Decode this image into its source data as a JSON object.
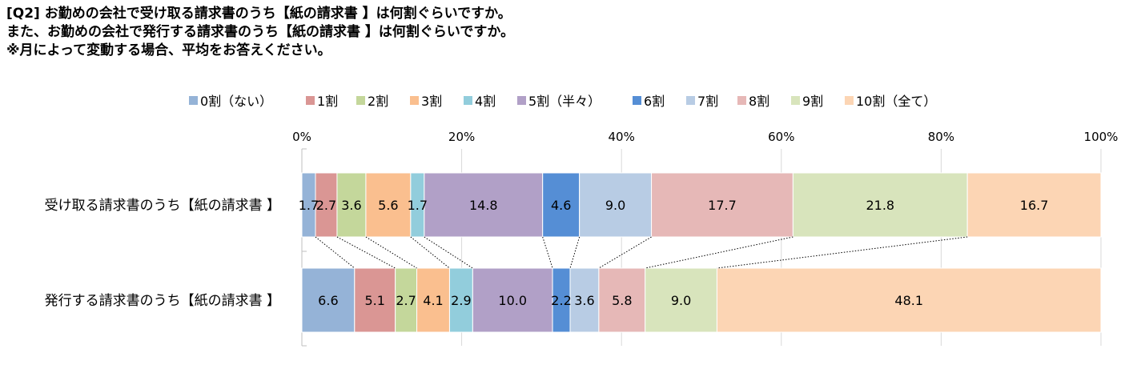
{
  "title_lines": [
    "[Q2] お勤めの会社で受け取る請求書のうち【紙の請求書 】は何割ぐらいですか。",
    "また、お勤めの会社で発行する請求書のうち【紙の請求書 】は何割ぐらいですか。",
    "※月によって変動する場合、平均をお答えください。"
  ],
  "chart_data": {
    "type": "bar",
    "stacked": true,
    "orientation": "horizontal",
    "percent_stacked": true,
    "categories": [
      "受け取る請求書のうち【紙の請求書 】",
      "発行する請求書のうち【紙の請求書 】"
    ],
    "x_ticks": [
      "0%",
      "20%",
      "40%",
      "60%",
      "80%",
      "100%"
    ],
    "xlim": [
      0,
      100
    ],
    "legend_position": "top",
    "grid": true,
    "series_lines": true,
    "series": [
      {
        "name": "0割（ない）",
        "color": "#95B3D7",
        "values": [
          1.7,
          6.6
        ]
      },
      {
        "name": "1割",
        "color": "#DA9694",
        "values": [
          2.7,
          5.1
        ]
      },
      {
        "name": "2割",
        "color": "#C4D79B",
        "values": [
          3.6,
          2.7
        ]
      },
      {
        "name": "3割",
        "color": "#FABF8F",
        "values": [
          5.6,
          4.1
        ]
      },
      {
        "name": "4割",
        "color": "#92CDDC",
        "values": [
          1.7,
          2.9
        ]
      },
      {
        "name": "5割（半々）",
        "color": "#B1A0C7",
        "values": [
          14.8,
          10.0
        ]
      },
      {
        "name": "6割",
        "color": "#558ED5",
        "values": [
          4.6,
          2.2
        ]
      },
      {
        "name": "7割",
        "color": "#B8CCE4",
        "values": [
          9.0,
          3.6
        ]
      },
      {
        "name": "8割",
        "color": "#E6B8B7",
        "values": [
          17.7,
          5.8
        ]
      },
      {
        "name": "9割",
        "color": "#D8E4BC",
        "values": [
          21.8,
          9.0
        ]
      },
      {
        "name": "10割（全て）",
        "color": "#FCD5B4",
        "values": [
          16.7,
          48.1
        ]
      }
    ]
  }
}
